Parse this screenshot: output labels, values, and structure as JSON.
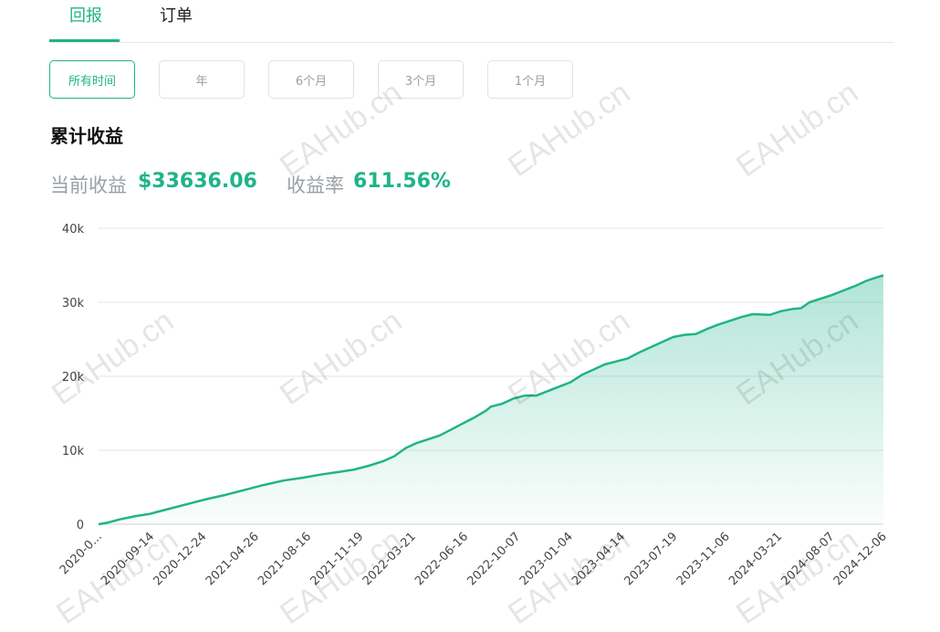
{
  "tabs": [
    {
      "label": "回报",
      "active": true
    },
    {
      "label": "订单",
      "active": false
    }
  ],
  "ranges": [
    {
      "label": "所有时间",
      "active": true
    },
    {
      "label": "年",
      "active": false
    },
    {
      "label": "6个月",
      "active": false
    },
    {
      "label": "3个月",
      "active": false
    },
    {
      "label": "1个月",
      "active": false
    }
  ],
  "section_title": "累计收益",
  "metrics": {
    "current_label": "当前收益",
    "current_value": "$33636.06",
    "rate_label": "收益率",
    "rate_value": "611.56%"
  },
  "watermark": "EAHub.cn",
  "colors": {
    "accent": "#1fb488",
    "muted": "#9aa0a6",
    "grid": "#e6e6e6"
  },
  "chart_data": {
    "type": "area",
    "title": "",
    "ylabel": "",
    "xlabel": "",
    "ylim": [
      0,
      40000
    ],
    "yticks": [
      0,
      10000,
      20000,
      30000,
      40000
    ],
    "ytick_labels": [
      "0",
      "10k",
      "20k",
      "30k",
      "40k"
    ],
    "xtick_labels": [
      "2020-0...",
      "2020-09-14",
      "2020-12-24",
      "2021-04-26",
      "2021-08-16",
      "2021-11-19",
      "2022-03-21",
      "2022-06-16",
      "2022-10-07",
      "2023-01-04",
      "2023-04-14",
      "2023-07-19",
      "2023-11-06",
      "2024-03-21",
      "2024-08-07",
      "2024-12-06"
    ],
    "grid": true,
    "series": [
      {
        "values": [
          [
            0,
            0
          ],
          [
            3,
            200
          ],
          [
            8,
            700
          ],
          [
            13,
            1100
          ],
          [
            18,
            1400
          ],
          [
            20,
            1600
          ],
          [
            25,
            2100
          ],
          [
            32,
            2800
          ],
          [
            38,
            3400
          ],
          [
            45,
            4000
          ],
          [
            52,
            4700
          ],
          [
            58,
            5300
          ],
          [
            65,
            5900
          ],
          [
            72,
            6300
          ],
          [
            78,
            6700
          ],
          [
            85,
            7100
          ],
          [
            90,
            7400
          ],
          [
            95,
            7900
          ],
          [
            100,
            8500
          ],
          [
            104,
            9200
          ],
          [
            108,
            10300
          ],
          [
            112,
            11000
          ],
          [
            116,
            11500
          ],
          [
            120,
            12000
          ],
          [
            124,
            12800
          ],
          [
            128,
            13600
          ],
          [
            132,
            14400
          ],
          [
            136,
            15300
          ],
          [
            138,
            15900
          ],
          [
            142,
            16300
          ],
          [
            146,
            17000
          ],
          [
            150,
            17400
          ],
          [
            154,
            17400
          ],
          [
            158,
            18000
          ],
          [
            162,
            18600
          ],
          [
            166,
            19200
          ],
          [
            170,
            20200
          ],
          [
            174,
            20900
          ],
          [
            178,
            21600
          ],
          [
            182,
            22000
          ],
          [
            186,
            22400
          ],
          [
            190,
            23200
          ],
          [
            194,
            23900
          ],
          [
            198,
            24600
          ],
          [
            202,
            25300
          ],
          [
            206,
            25600
          ],
          [
            210,
            25700
          ],
          [
            214,
            26400
          ],
          [
            218,
            27000
          ],
          [
            222,
            27500
          ],
          [
            226,
            28000
          ],
          [
            230,
            28400
          ],
          [
            236,
            28300
          ],
          [
            240,
            28800
          ],
          [
            244,
            29100
          ],
          [
            247,
            29200
          ],
          [
            250,
            30000
          ],
          [
            254,
            30500
          ],
          [
            258,
            31000
          ],
          [
            262,
            31600
          ],
          [
            266,
            32200
          ],
          [
            270,
            32900
          ],
          [
            273,
            33300
          ],
          [
            276,
            33636
          ]
        ]
      }
    ]
  }
}
